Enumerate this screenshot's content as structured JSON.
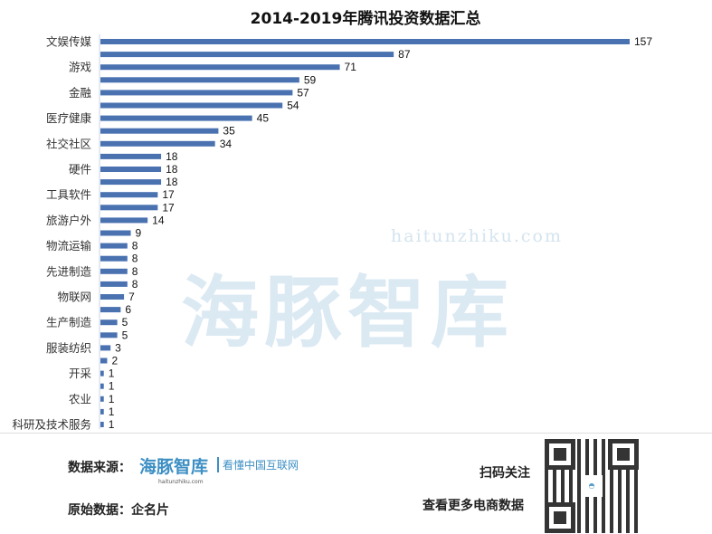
{
  "chart_data": {
    "type": "bar",
    "orientation": "horizontal",
    "title": "2014-2019年腾讯投资数据汇总",
    "xlabel": "",
    "ylabel": "",
    "xlim": [
      0,
      157
    ],
    "grid": false,
    "legend": "none",
    "bar_color": "#4a72b0",
    "categories": [
      "文娱传媒",
      "",
      "游戏",
      "",
      "金融",
      "",
      "医疗健康",
      "",
      "社交社区",
      "",
      "硬件",
      "",
      "工具软件",
      "",
      "旅游户外",
      "",
      "物流运输",
      "",
      "先进制造",
      "",
      "物联网",
      "",
      "生产制造",
      "",
      "服装纺织",
      "",
      "开采",
      "",
      "农业",
      "",
      "科研及技术服务"
    ],
    "values": [
      157,
      87,
      71,
      59,
      57,
      54,
      45,
      35,
      34,
      18,
      18,
      18,
      17,
      17,
      14,
      9,
      8,
      8,
      8,
      8,
      7,
      6,
      5,
      5,
      3,
      2,
      1,
      1,
      1,
      1,
      1
    ]
  },
  "watermark": {
    "text": "海豚智库",
    "url": "haitunzhiku.com"
  },
  "footer": {
    "source_label": "数据来源：",
    "source_logo": "海豚智库",
    "source_slogan": "看懂中国互联网",
    "source_url": "haitunzhiku.com",
    "raw_data_label": "原始数据：企名片",
    "scan_label": "扫码关注",
    "more_label": "查看更多电商数据"
  }
}
